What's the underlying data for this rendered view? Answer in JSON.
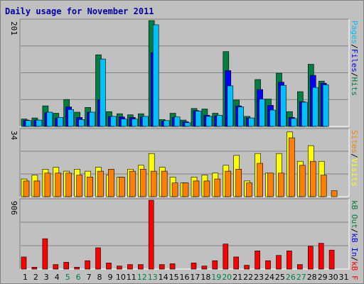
{
  "title": "Daily usage for November 2011",
  "colors": {
    "hits": "#008040",
    "files": "#0000ff",
    "pages": "#00c0ff",
    "visits": "#ffff00",
    "sites": "#ff8000",
    "kb_in": "#0000ff",
    "kb_out": "#008040",
    "kb_f": "#ff0000",
    "weekend": "#008040",
    "weekday": "#000000",
    "title": "#0000aa"
  },
  "chart_data": [
    {
      "type": "bar",
      "panel": "hits-files-pages",
      "ymax_label": "201",
      "ymax": 201,
      "legend": [
        {
          "name": "Hits",
          "key": "hits"
        },
        {
          "name": "/",
          "key": "sep1"
        },
        {
          "name": "Files",
          "key": "files"
        },
        {
          "name": "/",
          "key": "sep2"
        },
        {
          "name": "Pages",
          "key": "pages"
        }
      ],
      "categories": [
        "1",
        "2",
        "3",
        "4",
        "5",
        "6",
        "7",
        "8",
        "9",
        "10",
        "11",
        "12",
        "13",
        "14",
        "15",
        "16",
        "17",
        "18",
        "19",
        "20",
        "21",
        "22",
        "23",
        "24",
        "25",
        "26",
        "27",
        "28",
        "29",
        "30",
        "31"
      ],
      "series": [
        {
          "name": "Hits",
          "values": [
            14,
            16,
            39,
            25,
            51,
            27,
            36,
            136,
            28,
            24,
            22,
            24,
            201,
            13,
            25,
            12,
            34,
            33,
            25,
            142,
            50,
            19,
            89,
            52,
            101,
            28,
            66,
            118,
            86,
            0,
            0
          ]
        },
        {
          "name": "Files",
          "values": [
            12,
            12,
            26,
            16,
            37,
            17,
            27,
            51,
            19,
            18,
            17,
            18,
            140,
            10,
            17,
            9,
            30,
            21,
            20,
            106,
            39,
            16,
            70,
            40,
            84,
            17,
            47,
            97,
            82,
            0,
            0
          ]
        },
        {
          "name": "Pages",
          "values": [
            11,
            12,
            27,
            17,
            32,
            13,
            27,
            128,
            19,
            14,
            14,
            19,
            193,
            11,
            18,
            7,
            29,
            19,
            21,
            77,
            37,
            16,
            52,
            31,
            78,
            15,
            46,
            74,
            79,
            0,
            0
          ]
        }
      ]
    },
    {
      "type": "bar",
      "panel": "visits-sites",
      "ymax_label": "34",
      "ymax": 34,
      "legend": [
        {
          "name": "Visits",
          "key": "visits"
        },
        {
          "name": "/",
          "key": "sep3"
        },
        {
          "name": "Sites",
          "key": "sites"
        }
      ],
      "categories": [
        "1",
        "2",
        "3",
        "4",
        "5",
        "6",
        "7",
        "8",
        "9",
        "10",
        "11",
        "12",
        "13",
        "14",
        "15",
        "16",
        "17",
        "18",
        "19",
        "20",
        "21",
        "22",
        "23",
        "24",
        "25",
        "26",
        "27",
        "28",
        "29",
        "30",
        "31"
      ],
      "series": [
        {
          "name": "Visits",
          "values": [
            9,
            11,
            14,
            15,
            13,
            14,
            13,
            15,
            11,
            10,
            14,
            16,
            22,
            15,
            10,
            7,
            10,
            11,
            12,
            16,
            21,
            8,
            22,
            12,
            22,
            33,
            18,
            26,
            18,
            0,
            0
          ]
        },
        {
          "name": "Sites",
          "values": [
            8,
            8,
            12,
            12,
            12,
            11,
            10,
            13,
            14,
            10,
            13,
            14,
            13,
            13,
            7,
            7,
            8,
            8,
            9,
            13,
            14,
            7,
            17,
            12,
            12,
            30,
            16,
            18,
            11,
            3,
            0
          ]
        }
      ]
    },
    {
      "type": "bar",
      "panel": "kbf-kbin-kbout",
      "ymax_label": "906",
      "ymax": 906,
      "legend": [
        {
          "name": "kB F",
          "key": "kb_f"
        },
        {
          "name": "/",
          "key": "sep4"
        },
        {
          "name": "kB In",
          "key": "kb_in"
        },
        {
          "name": "/",
          "key": "sep5"
        },
        {
          "name": "kB Out",
          "key": "kb_out"
        }
      ],
      "categories": [
        "1",
        "2",
        "3",
        "4",
        "5",
        "6",
        "7",
        "8",
        "9",
        "10",
        "11",
        "12",
        "13",
        "14",
        "15",
        "16",
        "17",
        "18",
        "19",
        "20",
        "21",
        "22",
        "23",
        "24",
        "25",
        "26",
        "27",
        "28",
        "29",
        "30",
        "31"
      ],
      "series": [
        {
          "name": "kB F",
          "values": [
            160,
            25,
            400,
            60,
            90,
            25,
            110,
            280,
            80,
            40,
            60,
            60,
            906,
            60,
            70,
            0,
            80,
            40,
            110,
            330,
            160,
            50,
            240,
            110,
            180,
            240,
            60,
            300,
            340,
            250,
            0
          ]
        },
        {
          "name": "kB In",
          "values": [
            0,
            0,
            0,
            0,
            0,
            0,
            0,
            0,
            0,
            0,
            0,
            0,
            0,
            0,
            0,
            0,
            0,
            0,
            0,
            0,
            0,
            0,
            0,
            0,
            0,
            0,
            0,
            0,
            0,
            0,
            0
          ]
        },
        {
          "name": "kB Out",
          "values": [
            0,
            0,
            0,
            0,
            0,
            0,
            0,
            0,
            0,
            0,
            0,
            0,
            0,
            0,
            0,
            0,
            0,
            0,
            0,
            0,
            0,
            0,
            0,
            0,
            0,
            0,
            0,
            0,
            0,
            0,
            0
          ]
        }
      ]
    }
  ],
  "weekend_days": [
    5,
    6,
    12,
    13,
    19,
    20,
    26,
    27
  ]
}
